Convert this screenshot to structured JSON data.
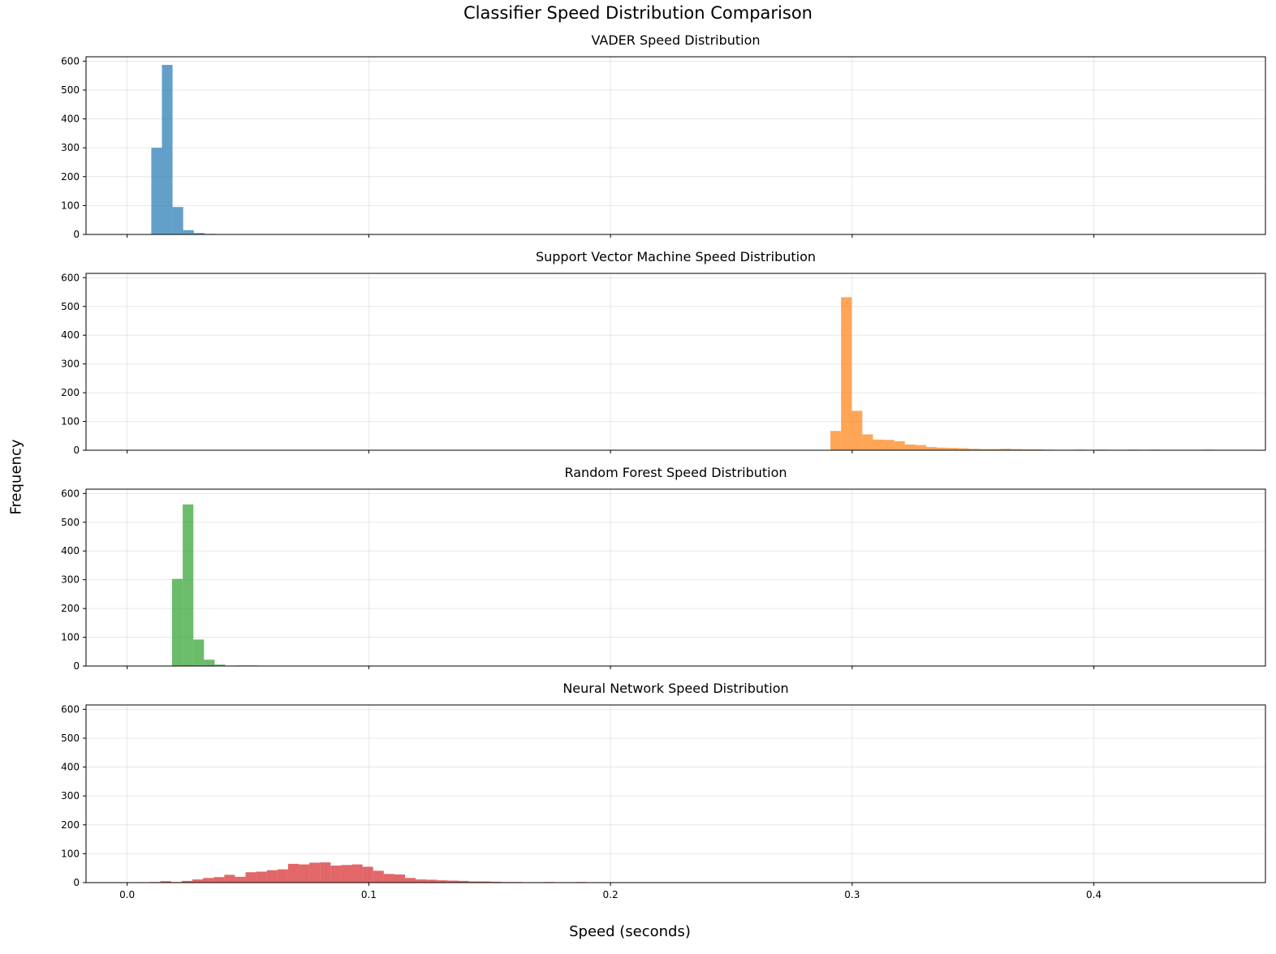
{
  "figure": {
    "title": "Classifier Speed Distribution Comparison",
    "xlabel": "Speed (seconds)",
    "ylabel": "Frequency"
  },
  "chart_data": [
    {
      "type": "histogram",
      "title": "VADER Speed Distribution",
      "color": "#1f77b4",
      "bin_width": 0.0044,
      "xlim": [
        -0.017,
        0.471
      ],
      "ylim": [
        0,
        615
      ],
      "x_ticks": [
        "0.0",
        "0.1",
        "0.2",
        "0.3",
        "0.4"
      ],
      "y_ticks": [
        "0",
        "100",
        "200",
        "300",
        "400",
        "500",
        "600"
      ],
      "grid": true,
      "bins": [
        {
          "x": 0.01,
          "y": 300
        },
        {
          "x": 0.0144,
          "y": 587
        },
        {
          "x": 0.0188,
          "y": 95
        },
        {
          "x": 0.0232,
          "y": 15
        },
        {
          "x": 0.0276,
          "y": 5
        },
        {
          "x": 0.032,
          "y": 2
        },
        {
          "x": 0.0364,
          "y": 1
        }
      ]
    },
    {
      "type": "histogram",
      "title": "Support Vector Machine Speed Distribution",
      "color": "#ff7f0e",
      "bin_width": 0.0044,
      "xlim": [
        -0.017,
        0.471
      ],
      "ylim": [
        0,
        615
      ],
      "x_ticks": [
        "0.0",
        "0.1",
        "0.2",
        "0.3",
        "0.4"
      ],
      "y_ticks": [
        "0",
        "100",
        "200",
        "300",
        "400",
        "500",
        "600"
      ],
      "grid": true,
      "bins": [
        {
          "x": 0.291,
          "y": 67
        },
        {
          "x": 0.2954,
          "y": 532
        },
        {
          "x": 0.2998,
          "y": 137
        },
        {
          "x": 0.3042,
          "y": 55
        },
        {
          "x": 0.3086,
          "y": 37
        },
        {
          "x": 0.313,
          "y": 36
        },
        {
          "x": 0.3174,
          "y": 31
        },
        {
          "x": 0.3218,
          "y": 20
        },
        {
          "x": 0.3262,
          "y": 18
        },
        {
          "x": 0.3306,
          "y": 11
        },
        {
          "x": 0.335,
          "y": 9
        },
        {
          "x": 0.3394,
          "y": 8
        },
        {
          "x": 0.3438,
          "y": 7
        },
        {
          "x": 0.3482,
          "y": 5
        },
        {
          "x": 0.3526,
          "y": 4
        },
        {
          "x": 0.357,
          "y": 4
        },
        {
          "x": 0.3614,
          "y": 5
        },
        {
          "x": 0.3658,
          "y": 4
        },
        {
          "x": 0.3702,
          "y": 3
        },
        {
          "x": 0.3746,
          "y": 3
        },
        {
          "x": 0.379,
          "y": 2
        },
        {
          "x": 0.3834,
          "y": 1
        },
        {
          "x": 0.3878,
          "y": 1
        },
        {
          "x": 0.3922,
          "y": 2
        },
        {
          "x": 0.3966,
          "y": 1
        },
        {
          "x": 0.401,
          "y": 2
        },
        {
          "x": 0.4054,
          "y": 1
        },
        {
          "x": 0.4098,
          "y": 1
        },
        {
          "x": 0.4142,
          "y": 2
        },
        {
          "x": 0.4186,
          "y": 1
        },
        {
          "x": 0.423,
          "y": 2
        },
        {
          "x": 0.4274,
          "y": 1
        },
        {
          "x": 0.445,
          "y": 2
        }
      ]
    },
    {
      "type": "histogram",
      "title": "Random Forest Speed Distribution",
      "color": "#2ca02c",
      "bin_width": 0.0044,
      "xlim": [
        -0.017,
        0.471
      ],
      "ylim": [
        0,
        615
      ],
      "x_ticks": [
        "0.0",
        "0.1",
        "0.2",
        "0.3",
        "0.4"
      ],
      "y_ticks": [
        "0",
        "100",
        "200",
        "300",
        "400",
        "500",
        "600"
      ],
      "grid": true,
      "bins": [
        {
          "x": 0.0186,
          "y": 303
        },
        {
          "x": 0.023,
          "y": 562
        },
        {
          "x": 0.0274,
          "y": 92
        },
        {
          "x": 0.0318,
          "y": 22
        },
        {
          "x": 0.0362,
          "y": 5
        },
        {
          "x": 0.0406,
          "y": 1
        },
        {
          "x": 0.045,
          "y": 2
        },
        {
          "x": 0.0494,
          "y": 2
        },
        {
          "x": 0.0538,
          "y": 1
        }
      ]
    },
    {
      "type": "histogram",
      "title": "Neural Network Speed Distribution",
      "color": "#d62728",
      "bin_width": 0.0044,
      "xlim": [
        -0.017,
        0.471
      ],
      "ylim": [
        0,
        615
      ],
      "x_ticks": [
        "0.0",
        "0.1",
        "0.2",
        "0.3",
        "0.4"
      ],
      "y_ticks": [
        "0",
        "100",
        "200",
        "300",
        "400",
        "500",
        "600"
      ],
      "grid": true,
      "bins": [
        {
          "x": 0.005,
          "y": 1
        },
        {
          "x": 0.0094,
          "y": 2
        },
        {
          "x": 0.0138,
          "y": 5
        },
        {
          "x": 0.0182,
          "y": 2
        },
        {
          "x": 0.0226,
          "y": 6
        },
        {
          "x": 0.027,
          "y": 11
        },
        {
          "x": 0.0314,
          "y": 16
        },
        {
          "x": 0.0358,
          "y": 19
        },
        {
          "x": 0.0402,
          "y": 27
        },
        {
          "x": 0.0446,
          "y": 20
        },
        {
          "x": 0.049,
          "y": 36
        },
        {
          "x": 0.0534,
          "y": 38
        },
        {
          "x": 0.0578,
          "y": 43
        },
        {
          "x": 0.0622,
          "y": 46
        },
        {
          "x": 0.0666,
          "y": 65
        },
        {
          "x": 0.071,
          "y": 63
        },
        {
          "x": 0.0754,
          "y": 69
        },
        {
          "x": 0.0798,
          "y": 70
        },
        {
          "x": 0.0842,
          "y": 59
        },
        {
          "x": 0.0886,
          "y": 61
        },
        {
          "x": 0.093,
          "y": 63
        },
        {
          "x": 0.0974,
          "y": 55
        },
        {
          "x": 0.1018,
          "y": 41
        },
        {
          "x": 0.1062,
          "y": 30
        },
        {
          "x": 0.1106,
          "y": 28
        },
        {
          "x": 0.115,
          "y": 16
        },
        {
          "x": 0.1194,
          "y": 11
        },
        {
          "x": 0.1238,
          "y": 10
        },
        {
          "x": 0.1282,
          "y": 8
        },
        {
          "x": 0.1326,
          "y": 7
        },
        {
          "x": 0.137,
          "y": 6
        },
        {
          "x": 0.1414,
          "y": 4
        },
        {
          "x": 0.1458,
          "y": 4
        },
        {
          "x": 0.1502,
          "y": 3
        },
        {
          "x": 0.1546,
          "y": 2
        },
        {
          "x": 0.159,
          "y": 2
        },
        {
          "x": 0.1634,
          "y": 1
        },
        {
          "x": 0.1678,
          "y": 1
        },
        {
          "x": 0.1722,
          "y": 2
        },
        {
          "x": 0.181,
          "y": 1
        },
        {
          "x": 0.1854,
          "y": 2
        },
        {
          "x": 0.2074,
          "y": 1
        },
        {
          "x": 0.2118,
          "y": 1
        },
        {
          "x": 0.2294,
          "y": 1
        }
      ]
    }
  ]
}
